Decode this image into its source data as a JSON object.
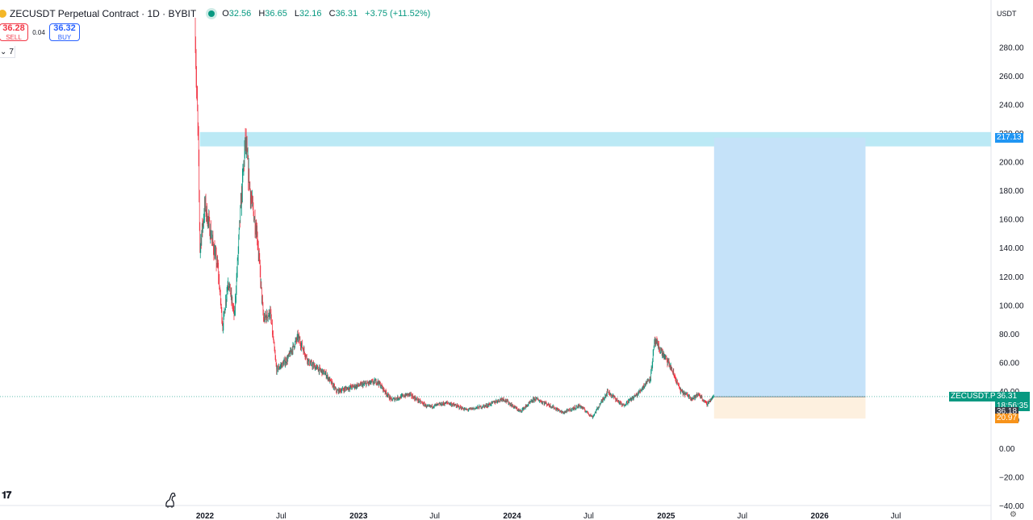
{
  "header": {
    "symbol_title": "ZECUSDT Perpetual Contract · 1D · BYBIT",
    "o_label": "O",
    "o_value": "32.56",
    "h_label": "H",
    "h_value": "36.65",
    "l_label": "L",
    "l_value": "32.16",
    "c_label": "C",
    "c_value": "36.31",
    "change": "+3.75 (+11.52%)"
  },
  "trade": {
    "sell_price": "36.28",
    "sell_label": "SELL",
    "spread": "0.04",
    "buy_price": "36.32",
    "buy_label": "BUY"
  },
  "indicator_toggle": {
    "icon": "chevron-down-icon",
    "count": "7"
  },
  "price_scale": {
    "currency": "USDT",
    "tick_labels": [
      "280.00",
      "260.00",
      "240.00",
      "220.00",
      "200.00",
      "180.00",
      "160.00",
      "140.00",
      "120.00",
      "100.00",
      "80.00",
      "60.00",
      "40.00",
      "20.00",
      "0.00",
      "−20.00",
      "−40.00"
    ]
  },
  "price_labels": {
    "target": "217.13",
    "symbol_tag": "ZECUSDT.P",
    "last_price": "36.31",
    "countdown": "18:56:35",
    "entry": "36.18",
    "stop": "20.97"
  },
  "time_scale": {
    "labels": [
      "2022",
      "Jul",
      "2023",
      "Jul",
      "2024",
      "Jul",
      "2025",
      "Jul",
      "2026",
      "Jul"
    ]
  },
  "colors": {
    "up": "#089981",
    "down": "#f23645",
    "target_zone": "#bbe9f5",
    "profit_zone": "#c5e2f9",
    "loss_zone": "#fdf0df",
    "target_label": "#2196f3",
    "last_price_label": "#089981",
    "entry_label": "#363a45",
    "stop_label": "#f7931a"
  },
  "chart_data": {
    "type": "candlestick",
    "title": "ZECUSDT Perpetual Contract · 1D · BYBIT",
    "ylim": [
      -40,
      300
    ],
    "y_scale": "linear",
    "grid": false,
    "x_range": [
      "2022-01-01",
      "2026-07-01"
    ],
    "price_path": [
      {
        "date": "2021-12-09",
        "price": 290
      },
      {
        "date": "2021-12-12",
        "price": 250
      },
      {
        "date": "2021-12-16",
        "price": 215
      },
      {
        "date": "2021-12-20",
        "price": 140
      },
      {
        "date": "2022-01-01",
        "price": 170
      },
      {
        "date": "2022-01-15",
        "price": 150
      },
      {
        "date": "2022-02-01",
        "price": 125
      },
      {
        "date": "2022-02-12",
        "price": 85
      },
      {
        "date": "2022-02-25",
        "price": 118
      },
      {
        "date": "2022-03-12",
        "price": 92
      },
      {
        "date": "2022-03-25",
        "price": 160
      },
      {
        "date": "2022-04-07",
        "price": 215
      },
      {
        "date": "2022-04-20",
        "price": 175
      },
      {
        "date": "2022-05-05",
        "price": 150
      },
      {
        "date": "2022-05-20",
        "price": 90
      },
      {
        "date": "2022-06-05",
        "price": 95
      },
      {
        "date": "2022-06-20",
        "price": 55
      },
      {
        "date": "2022-07-15",
        "price": 62
      },
      {
        "date": "2022-08-10",
        "price": 78
      },
      {
        "date": "2022-09-05",
        "price": 60
      },
      {
        "date": "2022-10-15",
        "price": 52
      },
      {
        "date": "2022-11-10",
        "price": 40
      },
      {
        "date": "2022-12-15",
        "price": 43
      },
      {
        "date": "2023-02-15",
        "price": 47
      },
      {
        "date": "2023-03-20",
        "price": 34
      },
      {
        "date": "2023-05-01",
        "price": 38
      },
      {
        "date": "2023-06-15",
        "price": 29
      },
      {
        "date": "2023-08-01",
        "price": 32
      },
      {
        "date": "2023-09-15",
        "price": 27
      },
      {
        "date": "2023-11-01",
        "price": 30
      },
      {
        "date": "2023-12-10",
        "price": 35
      },
      {
        "date": "2024-01-20",
        "price": 26
      },
      {
        "date": "2024-02-25",
        "price": 35
      },
      {
        "date": "2024-04-01",
        "price": 30
      },
      {
        "date": "2024-05-01",
        "price": 25
      },
      {
        "date": "2024-06-10",
        "price": 30
      },
      {
        "date": "2024-07-10",
        "price": 22
      },
      {
        "date": "2024-08-15",
        "price": 40
      },
      {
        "date": "2024-09-20",
        "price": 30
      },
      {
        "date": "2024-10-25",
        "price": 38
      },
      {
        "date": "2024-11-25",
        "price": 50
      },
      {
        "date": "2024-12-05",
        "price": 75
      },
      {
        "date": "2024-12-20",
        "price": 68
      },
      {
        "date": "2025-01-10",
        "price": 58
      },
      {
        "date": "2025-02-05",
        "price": 40
      },
      {
        "date": "2025-03-05",
        "price": 35
      },
      {
        "date": "2025-03-20",
        "price": 38
      },
      {
        "date": "2025-04-07",
        "price": 31
      },
      {
        "date": "2025-04-24",
        "price": 36.31
      }
    ],
    "last_candle": {
      "open": 32.56,
      "high": 36.65,
      "low": 32.16,
      "close": 36.31
    },
    "position_tool": {
      "start": "2025-04-25",
      "end": "2026-04-20",
      "entry": 36.18,
      "target": 217.13,
      "stop": 20.97
    },
    "target_zone": {
      "start": "2021-12-20",
      "end": "2026-12-31",
      "low": 211,
      "high": 221
    },
    "last_price_line": 36.31
  }
}
